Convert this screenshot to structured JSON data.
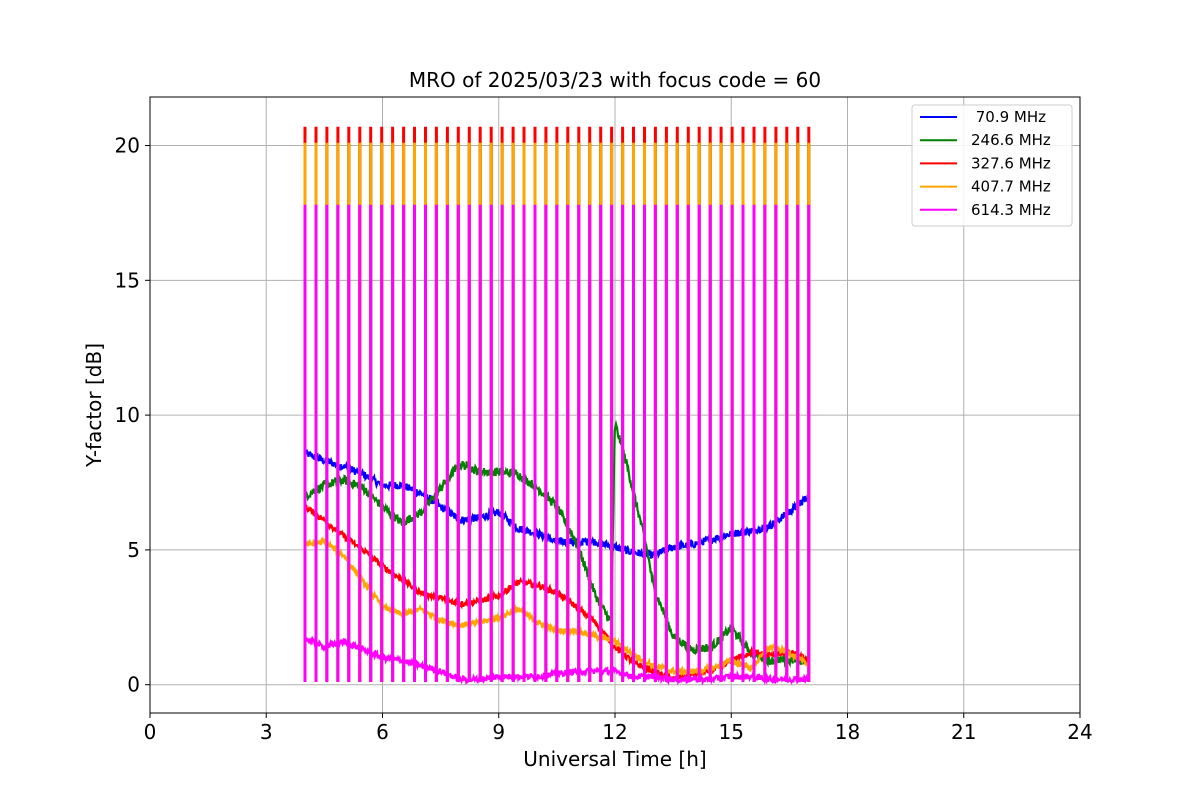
{
  "chart_data": {
    "type": "line",
    "title": "MRO of 2025/03/23 with focus code = 60",
    "xlabel": "Universal Time [h]",
    "ylabel": "Y-factor [dB]",
    "xlim": [
      0,
      24
    ],
    "ylim": [
      -1.05,
      21.8
    ],
    "xticks": [
      0,
      3,
      6,
      9,
      12,
      15,
      18,
      21,
      24
    ],
    "yticks": [
      0,
      5,
      10,
      15,
      20
    ],
    "grid": true,
    "legend_position": "upper right",
    "calibration_cycle": {
      "start_hour": 4.0,
      "end_hour": 17.0,
      "spike_count": 47,
      "spike_peaks": {
        "70.9 MHz": 0.1,
        "246.6 MHz": 20.1,
        "327.6 MHz": 20.7,
        "407.7 MHz": 20.1,
        "614.3 MHz": 17.8
      }
    },
    "series": [
      {
        "name": " 70.9 MHz",
        "color": "#0000ff",
        "baseline": [
          [
            4.0,
            8.6
          ],
          [
            4.5,
            8.3
          ],
          [
            5.0,
            8.1
          ],
          [
            5.5,
            7.8
          ],
          [
            6.0,
            7.4
          ],
          [
            6.5,
            7.4
          ],
          [
            7.0,
            7.1
          ],
          [
            7.5,
            6.6
          ],
          [
            8.0,
            6.1
          ],
          [
            8.5,
            6.2
          ],
          [
            9.0,
            6.4
          ],
          [
            9.5,
            5.8
          ],
          [
            10.0,
            5.6
          ],
          [
            10.5,
            5.3
          ],
          [
            11.0,
            5.3
          ],
          [
            11.5,
            5.3
          ],
          [
            12.0,
            5.1
          ],
          [
            12.5,
            4.9
          ],
          [
            13.0,
            4.8
          ],
          [
            13.5,
            5.1
          ],
          [
            14.0,
            5.2
          ],
          [
            14.5,
            5.4
          ],
          [
            15.0,
            5.6
          ],
          [
            15.5,
            5.7
          ],
          [
            16.0,
            5.9
          ],
          [
            16.5,
            6.4
          ],
          [
            17.0,
            7.0
          ]
        ]
      },
      {
        "name": "246.6 MHz",
        "color": "#008000",
        "baseline": [
          [
            4.0,
            7.0
          ],
          [
            4.5,
            7.4
          ],
          [
            5.0,
            7.6
          ],
          [
            5.5,
            7.3
          ],
          [
            6.0,
            6.6
          ],
          [
            6.5,
            6.0
          ],
          [
            7.0,
            6.4
          ],
          [
            7.5,
            7.3
          ],
          [
            8.0,
            8.2
          ],
          [
            8.5,
            7.9
          ],
          [
            9.0,
            7.9
          ],
          [
            9.5,
            7.8
          ],
          [
            10.0,
            7.3
          ],
          [
            10.5,
            6.6
          ],
          [
            11.0,
            5.3
          ],
          [
            11.5,
            3.3
          ],
          [
            11.9,
            2.3
          ],
          [
            12.0,
            9.7
          ],
          [
            12.3,
            8.2
          ],
          [
            12.5,
            7.0
          ],
          [
            12.8,
            5.2
          ],
          [
            13.0,
            3.6
          ],
          [
            13.5,
            1.8
          ],
          [
            14.0,
            1.3
          ],
          [
            14.5,
            1.4
          ],
          [
            15.0,
            2.1
          ],
          [
            15.5,
            1.2
          ],
          [
            16.0,
            0.9
          ],
          [
            16.5,
            0.9
          ],
          [
            17.0,
            0.9
          ]
        ]
      },
      {
        "name": "327.6 MHz",
        "color": "#ff0000",
        "baseline": [
          [
            4.0,
            6.6
          ],
          [
            4.5,
            6.1
          ],
          [
            5.0,
            5.5
          ],
          [
            5.5,
            5.0
          ],
          [
            6.0,
            4.4
          ],
          [
            6.5,
            3.9
          ],
          [
            7.0,
            3.4
          ],
          [
            7.5,
            3.2
          ],
          [
            8.0,
            3.0
          ],
          [
            8.5,
            3.1
          ],
          [
            9.0,
            3.3
          ],
          [
            9.5,
            3.8
          ],
          [
            10.0,
            3.7
          ],
          [
            10.5,
            3.4
          ],
          [
            11.0,
            2.9
          ],
          [
            11.5,
            2.3
          ],
          [
            12.0,
            1.4
          ],
          [
            12.5,
            0.8
          ],
          [
            13.0,
            0.5
          ],
          [
            13.5,
            0.2
          ],
          [
            14.0,
            0.4
          ],
          [
            14.5,
            0.5
          ],
          [
            15.0,
            0.9
          ],
          [
            15.5,
            1.2
          ],
          [
            16.0,
            1.1
          ],
          [
            16.5,
            1.2
          ],
          [
            17.0,
            0.9
          ]
        ]
      },
      {
        "name": "407.7 MHz",
        "color": "#ffa500",
        "baseline": [
          [
            4.0,
            5.2
          ],
          [
            4.5,
            5.3
          ],
          [
            5.0,
            4.8
          ],
          [
            5.5,
            3.8
          ],
          [
            6.0,
            2.9
          ],
          [
            6.5,
            2.6
          ],
          [
            7.0,
            2.8
          ],
          [
            7.5,
            2.4
          ],
          [
            8.0,
            2.2
          ],
          [
            8.5,
            2.3
          ],
          [
            9.0,
            2.5
          ],
          [
            9.5,
            2.8
          ],
          [
            10.0,
            2.3
          ],
          [
            10.5,
            2.0
          ],
          [
            11.0,
            2.0
          ],
          [
            11.5,
            1.8
          ],
          [
            12.0,
            1.6
          ],
          [
            12.5,
            1.1
          ],
          [
            13.0,
            0.7
          ],
          [
            13.5,
            0.5
          ],
          [
            14.0,
            0.5
          ],
          [
            14.5,
            0.6
          ],
          [
            15.0,
            0.9
          ],
          [
            15.5,
            0.6
          ],
          [
            16.0,
            1.4
          ],
          [
            16.5,
            1.2
          ],
          [
            17.0,
            0.7
          ]
        ]
      },
      {
        "name": "614.3 MHz",
        "color": "#ff00ff",
        "baseline": [
          [
            4.0,
            1.7
          ],
          [
            4.5,
            1.4
          ],
          [
            5.0,
            1.6
          ],
          [
            5.5,
            1.3
          ],
          [
            6.0,
            1.0
          ],
          [
            6.5,
            0.9
          ],
          [
            7.0,
            0.7
          ],
          [
            7.5,
            0.5
          ],
          [
            8.0,
            0.2
          ],
          [
            8.5,
            0.2
          ],
          [
            9.0,
            0.3
          ],
          [
            9.5,
            0.3
          ],
          [
            10.0,
            0.3
          ],
          [
            10.5,
            0.4
          ],
          [
            11.0,
            0.5
          ],
          [
            11.5,
            0.5
          ],
          [
            12.0,
            0.5
          ],
          [
            12.5,
            0.3
          ],
          [
            13.0,
            0.3
          ],
          [
            13.5,
            0.2
          ],
          [
            14.0,
            0.2
          ],
          [
            14.5,
            0.2
          ],
          [
            15.0,
            0.3
          ],
          [
            15.5,
            0.3
          ],
          [
            16.0,
            0.2
          ],
          [
            16.5,
            0.2
          ],
          [
            17.0,
            0.2
          ]
        ]
      }
    ]
  }
}
